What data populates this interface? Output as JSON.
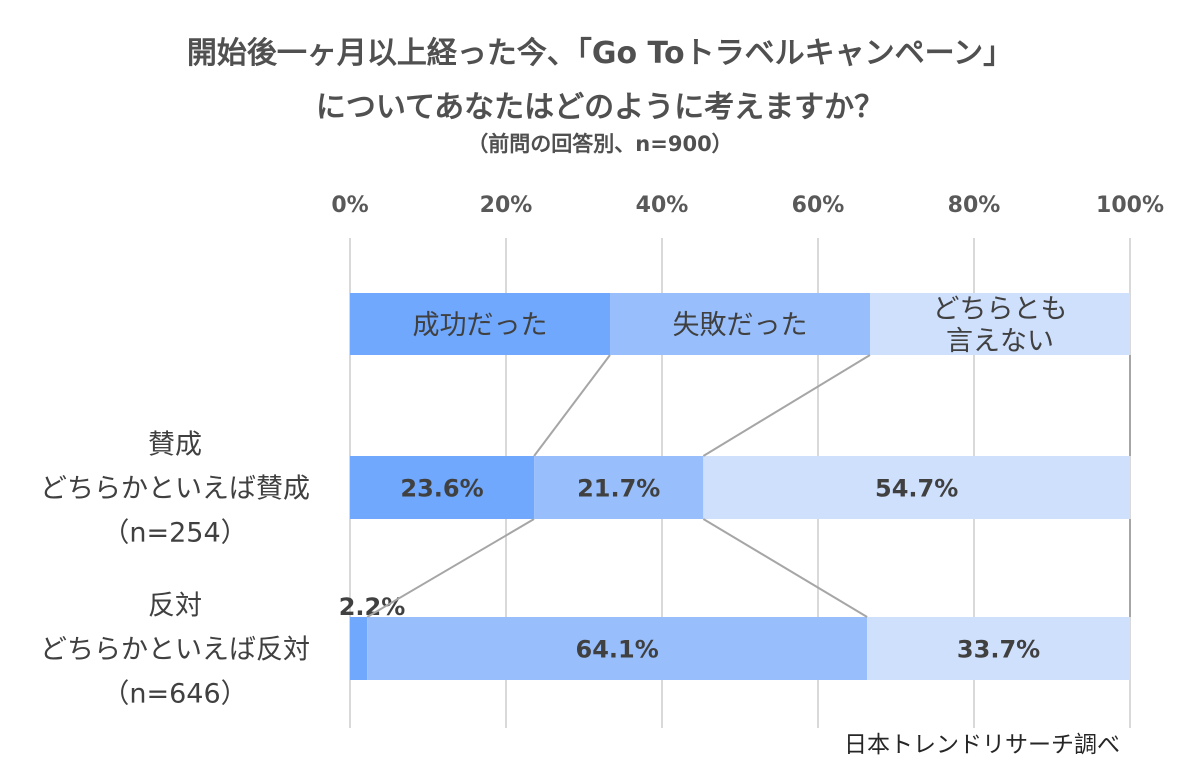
{
  "chart_data": {
    "type": "bar",
    "orientation": "horizontal",
    "stacked": true,
    "normalized": true,
    "title_lines": [
      "開始後一ヶ月以上経った今、「Go Toトラベルキャンペーン」",
      "についてあなたはどのように考えますか？"
    ],
    "subtitle": "（前問の回答別、n=900）",
    "x_ticks": [
      "0%",
      "20%",
      "40%",
      "60%",
      "80%",
      "100%"
    ],
    "xlim": [
      0,
      100
    ],
    "grid": true,
    "legend": {
      "placement": "top-inline",
      "entries": [
        {
          "lines": [
            "成功だった"
          ]
        },
        {
          "lines": [
            "失敗だった"
          ]
        },
        {
          "lines": [
            "どちらとも",
            "言えない"
          ]
        }
      ]
    },
    "categories": [
      {
        "lines": [
          "賛成",
          "どちらかといえば賛成",
          "（n=254）"
        ]
      },
      {
        "lines": [
          "反対",
          "どちらかといえば反対",
          "（n=646）"
        ]
      }
    ],
    "series": [
      {
        "values": [
          23.6,
          2.2
        ],
        "labels": [
          "23.6%",
          "2.2%"
        ],
        "color": "#6fa8fc"
      },
      {
        "values": [
          21.7,
          64.1
        ],
        "labels": [
          "21.7%",
          "64.1%"
        ],
        "color": "#98bffc"
      },
      {
        "values": [
          54.7,
          33.7
        ],
        "labels": [
          "54.7%",
          "33.7%"
        ],
        "color": "#cfe0fd"
      }
    ],
    "source": "日本トレンドリサーチ調べ"
  }
}
